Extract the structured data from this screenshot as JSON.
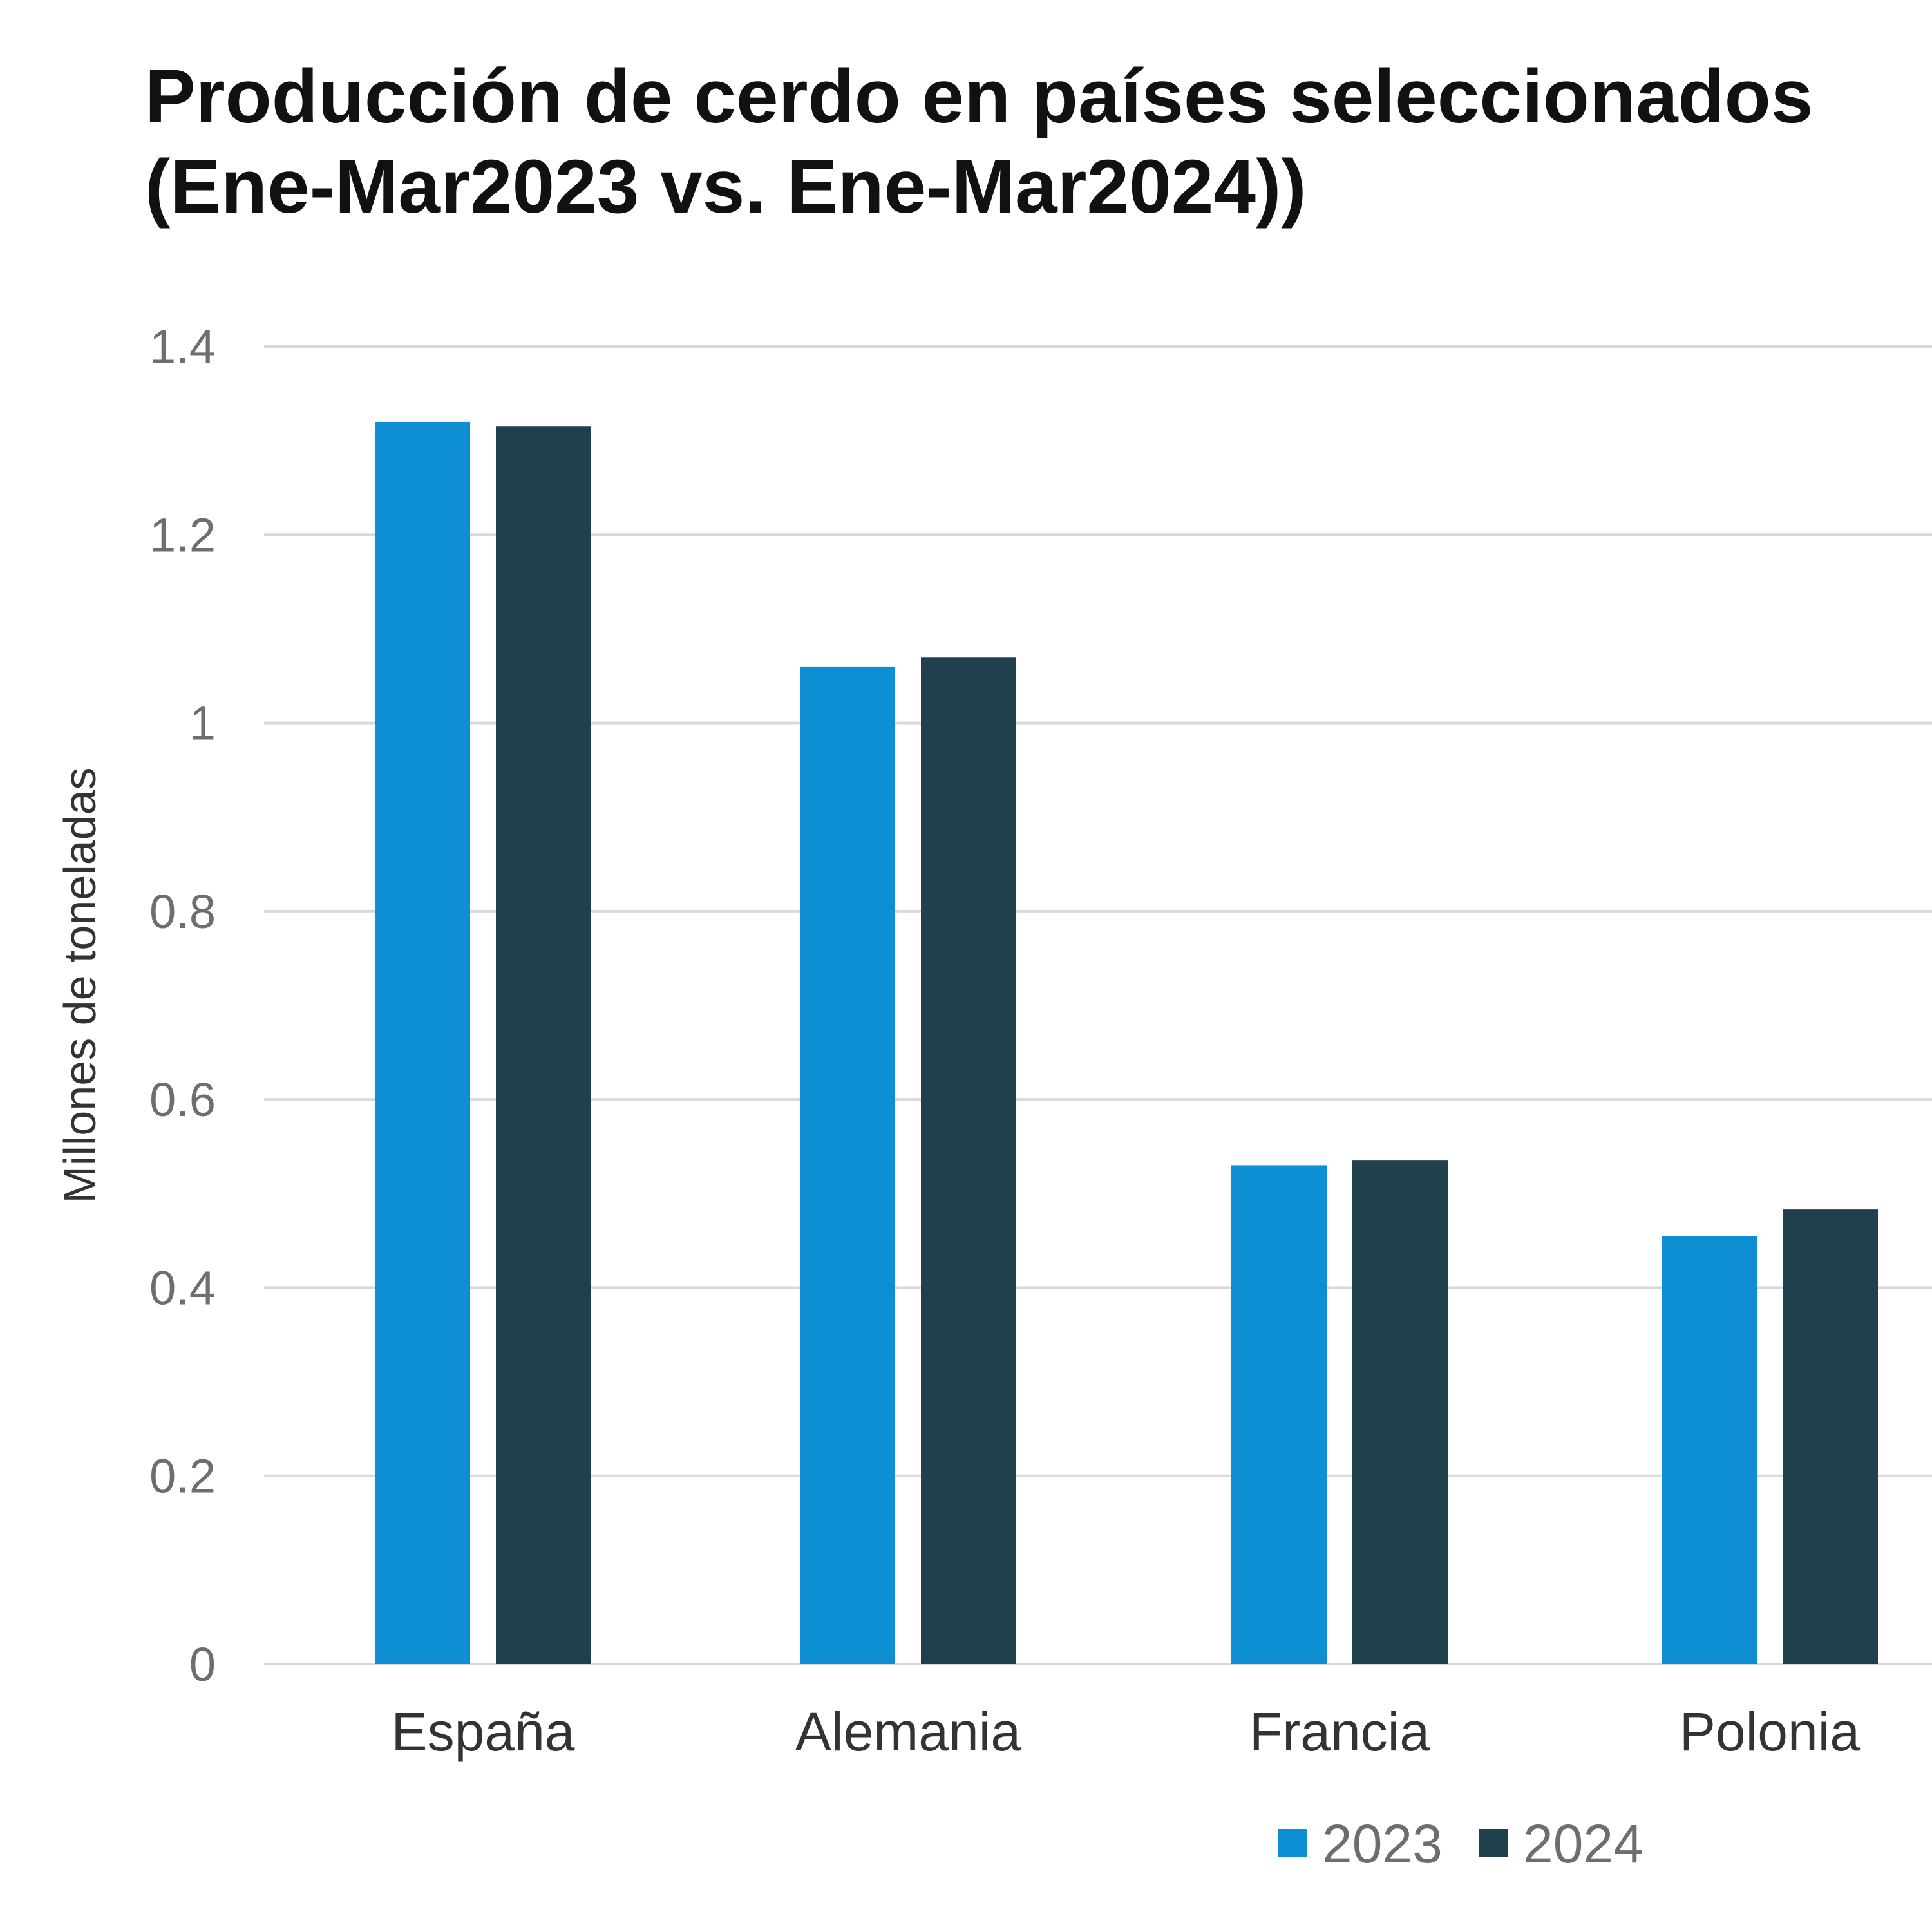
{
  "chart_data": {
    "type": "bar",
    "title_line1": "Producción de cerdo en países seleccionados",
    "title_line2": "(Ene-Mar2023 vs. Ene-Mar2024))",
    "xlabel": "",
    "ylabel": "Millones de toneladas",
    "ylim": [
      0,
      1.4
    ],
    "yticks": [
      0,
      0.2,
      0.4,
      0.6,
      0.8,
      1,
      1.2,
      1.4
    ],
    "ytick_labels": [
      "0",
      "0.2",
      "0.4",
      "0.6",
      "0.8",
      "1",
      "1.2",
      "1.4"
    ],
    "categories": [
      "España",
      "Alemania",
      "Francia",
      "Polonia"
    ],
    "series": [
      {
        "name": "2023",
        "color": "#0E8FD3",
        "values": [
          1.32,
          1.06,
          0.53,
          0.455
        ]
      },
      {
        "name": "2024",
        "color": "#20404D",
        "values": [
          1.315,
          1.07,
          0.535,
          0.483
        ]
      }
    ],
    "grid": true,
    "legend_position": "bottom"
  }
}
